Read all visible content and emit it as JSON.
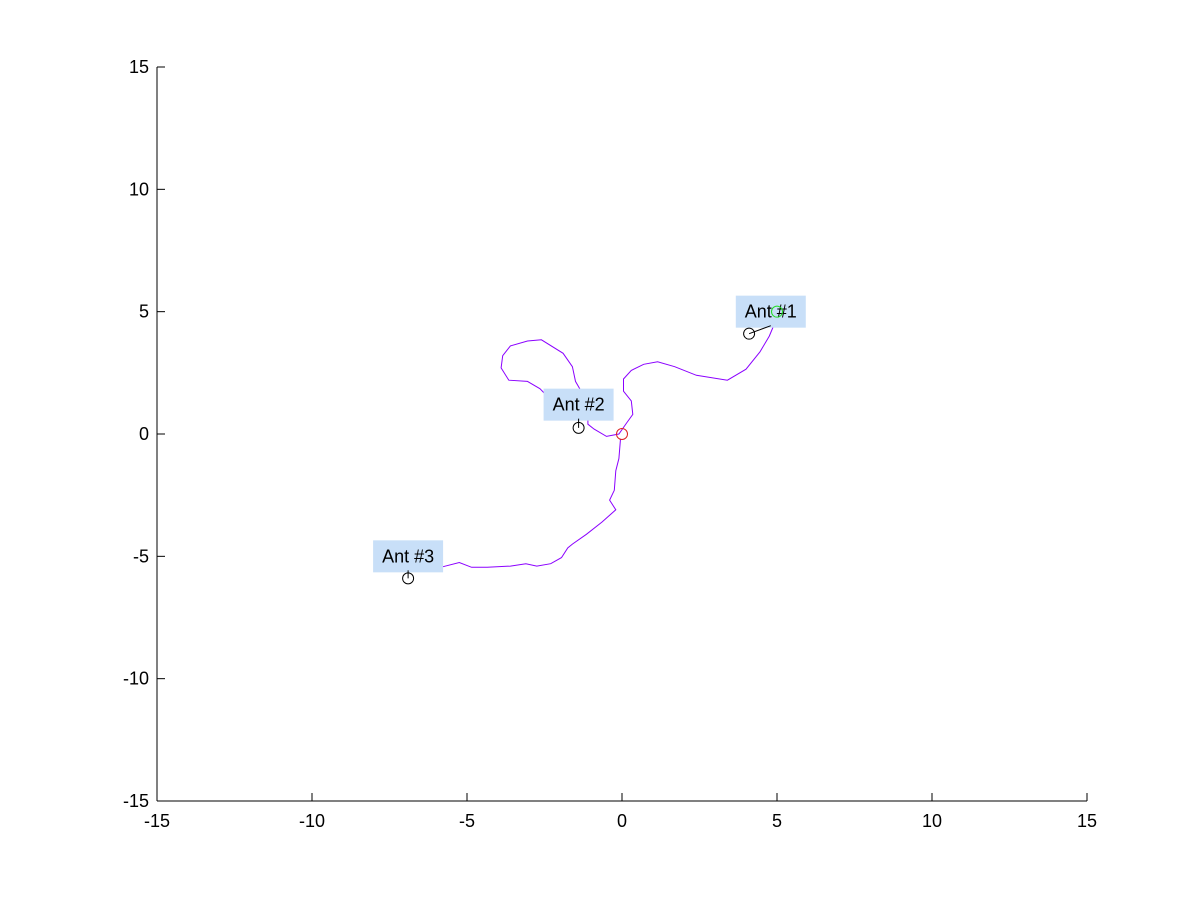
{
  "chart_data": {
    "type": "line",
    "title": "",
    "xlabel": "",
    "ylabel": "",
    "xlim": [
      -15,
      15
    ],
    "ylim": [
      -15,
      15
    ],
    "grid": false,
    "xticks": [
      -15,
      -10,
      -5,
      0,
      5,
      10,
      15
    ],
    "yticks": [
      -15,
      -10,
      -5,
      0,
      5,
      10,
      15
    ],
    "xtick_labels": [
      "-15",
      "-10",
      "-5",
      "0",
      "5",
      "10",
      "15"
    ],
    "ytick_labels": [
      "-15",
      "-10",
      "-5",
      "0",
      "5",
      "10",
      "15"
    ],
    "series": [
      {
        "color": "#8B00FF",
        "points": [
          [
            4.95,
            4.6
          ],
          [
            4.75,
            4.0
          ],
          [
            4.45,
            3.35
          ],
          [
            4.0,
            2.65
          ],
          [
            3.4,
            2.2
          ],
          [
            2.4,
            2.4
          ],
          [
            1.7,
            2.75
          ],
          [
            1.15,
            2.95
          ],
          [
            0.7,
            2.85
          ],
          [
            0.3,
            2.6
          ],
          [
            0.05,
            2.25
          ],
          [
            0.05,
            1.75
          ],
          [
            0.3,
            1.35
          ],
          [
            0.35,
            0.8
          ],
          [
            0.15,
            0.45
          ],
          [
            -0.1,
            0.0
          ],
          [
            -0.5,
            -0.1
          ],
          [
            -0.9,
            0.2
          ],
          [
            -1.1,
            0.4
          ],
          [
            -1.1,
            1.0
          ],
          [
            -1.25,
            1.6
          ],
          [
            -1.5,
            2.15
          ],
          [
            -1.6,
            2.75
          ],
          [
            -1.9,
            3.3
          ],
          [
            -2.6,
            3.85
          ],
          [
            -3.05,
            3.8
          ],
          [
            -3.6,
            3.6
          ],
          [
            -3.85,
            3.2
          ],
          [
            -3.9,
            2.7
          ],
          [
            -3.65,
            2.2
          ],
          [
            -3.05,
            2.15
          ],
          [
            -2.65,
            1.85
          ],
          [
            -2.45,
            1.6
          ]
        ]
      },
      {
        "color": "#8B00FF",
        "points": [
          [
            -0.05,
            -0.2
          ],
          [
            -0.1,
            -1.0
          ],
          [
            -0.2,
            -1.5
          ],
          [
            -0.25,
            -2.3
          ],
          [
            -0.4,
            -2.7
          ],
          [
            -0.2,
            -3.1
          ],
          [
            -0.65,
            -3.6
          ],
          [
            -1.15,
            -4.1
          ],
          [
            -1.6,
            -4.5
          ],
          [
            -1.75,
            -4.65
          ],
          [
            -1.95,
            -5.05
          ],
          [
            -2.3,
            -5.3
          ],
          [
            -2.75,
            -5.4
          ],
          [
            -3.1,
            -5.3
          ],
          [
            -3.6,
            -5.4
          ],
          [
            -4.35,
            -5.45
          ],
          [
            -4.85,
            -5.45
          ],
          [
            -5.25,
            -5.25
          ],
          [
            -5.85,
            -5.45
          ]
        ]
      }
    ],
    "markers": [
      {
        "x": 5.0,
        "y": 5.0,
        "color": "#22DD22",
        "shape": "circle"
      },
      {
        "x": 0.0,
        "y": 0.0,
        "color": "#DD2222",
        "shape": "circle"
      },
      {
        "x": 4.1,
        "y": 4.1,
        "color": "#000000",
        "shape": "circle"
      },
      {
        "x": -1.4,
        "y": 0.25,
        "color": "#000000",
        "shape": "circle"
      },
      {
        "x": -6.9,
        "y": -5.9,
        "color": "#000000",
        "shape": "circle"
      }
    ],
    "annotations": [
      {
        "text": "Ant #1",
        "x": 4.1,
        "y": 4.1,
        "label_x": 4.8,
        "label_y": 5.0
      },
      {
        "text": "Ant #2",
        "x": -1.4,
        "y": 0.25,
        "label_x": -1.4,
        "label_y": 1.2
      },
      {
        "text": "Ant #3",
        "x": -6.9,
        "y": -5.9,
        "label_x": -6.9,
        "label_y": -5.0
      }
    ],
    "label_background": "#C8DFF8"
  }
}
